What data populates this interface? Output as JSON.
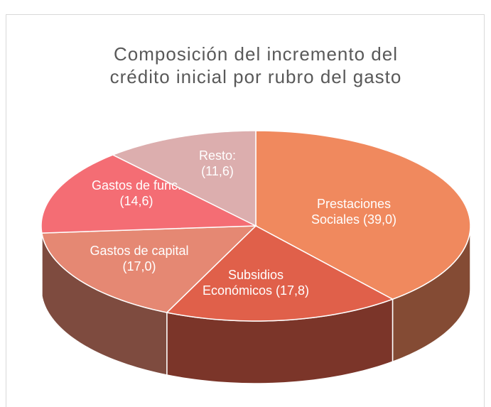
{
  "chart_data": {
    "type": "pie",
    "title": "Composición del incremento del crédito inicial por rubro del gasto",
    "categories": [
      "Prestaciones Sociales",
      "Subsidios Económicos",
      "Gastos de capital",
      "Gastos de func.",
      "Resto:"
    ],
    "values": [
      39.0,
      17.8,
      17.0,
      14.6,
      11.6
    ],
    "value_labels": [
      "(39,0)",
      "(17,8)",
      "(17,0)",
      "(14,6)",
      "(11,6)"
    ],
    "colors": [
      "#f0895e",
      "#e0604a",
      "#e58873",
      "#f46d74",
      "#dcaeae"
    ]
  }
}
